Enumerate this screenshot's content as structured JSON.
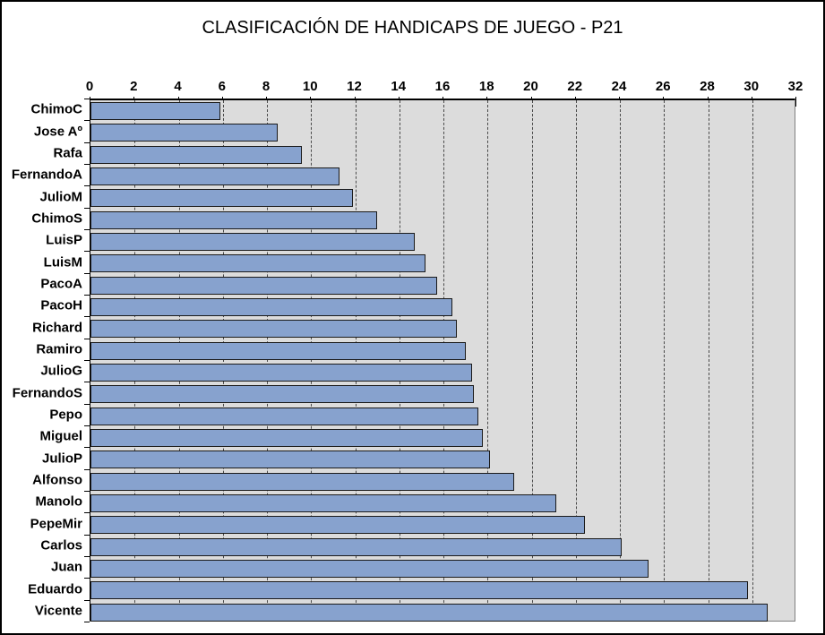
{
  "colors": {
    "bar_fill": "#87A2CE",
    "bar_border": "#1A1A1A",
    "plot_background": "#DCDCDC",
    "plot_border": "#808080",
    "axis_line": "#000000",
    "gridline": "#4A4A4A",
    "chart_background": "#FFFFFF",
    "text": "#000000"
  },
  "chart_data": {
    "type": "bar",
    "orientation": "horizontal",
    "title": "CLASIFICACIÓN DE HANDICAPS DE JUEGO - P21",
    "categories": [
      "ChimoC",
      "Jose Aº",
      "Rafa",
      "FernandoA",
      "JulioM",
      "ChimoS",
      "LuisP",
      "LuisM",
      "PacoA",
      "PacoH",
      "Richard",
      "Ramiro",
      "JulioG",
      "FernandoS",
      "Pepo",
      "Miguel",
      "JulioP",
      "Alfonso",
      "Manolo",
      "PepeMir",
      "Carlos",
      "Juan",
      "Eduardo",
      "Vicente"
    ],
    "values": [
      5.9,
      8.5,
      9.6,
      11.3,
      11.9,
      13.0,
      14.7,
      15.2,
      15.7,
      16.4,
      16.6,
      17.0,
      17.3,
      17.4,
      17.6,
      17.8,
      18.1,
      19.2,
      21.1,
      22.4,
      24.1,
      25.3,
      29.8,
      30.7
    ],
    "xlabel": "",
    "ylabel": "",
    "xlim": [
      0,
      32
    ],
    "x_tick_labels": [
      "0",
      "2",
      "4",
      "6",
      "8",
      "10",
      "12",
      "14",
      "16",
      "18",
      "20",
      "22",
      "24",
      "26",
      "28",
      "30",
      "32"
    ],
    "x_tick_step": 2,
    "value_axis_position": "top",
    "grid": "vertical-dashed-every-2-units",
    "legend": "none"
  }
}
